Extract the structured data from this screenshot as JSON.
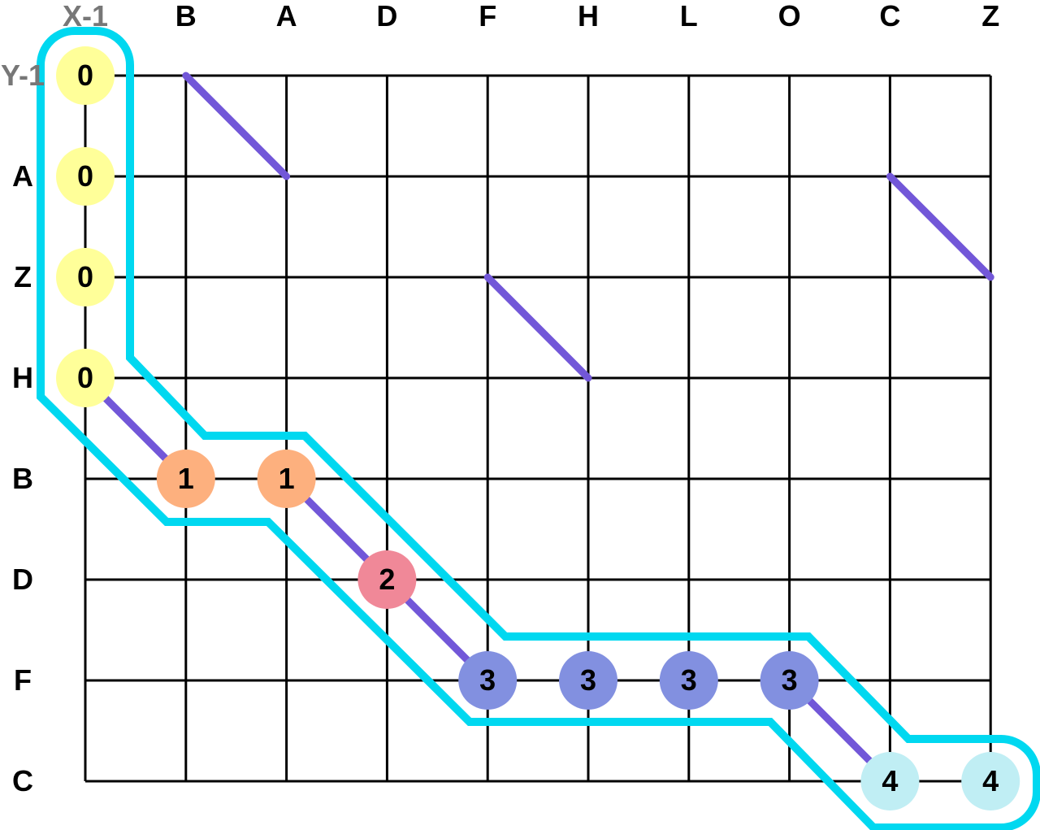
{
  "grid": {
    "column_headers": [
      "X-1",
      "B",
      "A",
      "D",
      "F",
      "H",
      "L",
      "O",
      "C",
      "Z"
    ],
    "row_headers": [
      "Y-1",
      "A",
      "Z",
      "H",
      "B",
      "D",
      "F",
      "C"
    ]
  },
  "diagonal_matches": [
    {
      "from": {
        "col": 1,
        "row": 0
      },
      "to": {
        "col": 2,
        "row": 1
      }
    },
    {
      "from": {
        "col": 8,
        "row": 1
      },
      "to": {
        "col": 9,
        "row": 2
      }
    },
    {
      "from": {
        "col": 4,
        "row": 2
      },
      "to": {
        "col": 5,
        "row": 3
      }
    },
    {
      "from": {
        "col": 0,
        "row": 3
      },
      "to": {
        "col": 1,
        "row": 4
      }
    },
    {
      "from": {
        "col": 2,
        "row": 4
      },
      "to": {
        "col": 3,
        "row": 5
      }
    },
    {
      "from": {
        "col": 3,
        "row": 5
      },
      "to": {
        "col": 4,
        "row": 6
      }
    },
    {
      "from": {
        "col": 7,
        "row": 6
      },
      "to": {
        "col": 8,
        "row": 7
      }
    }
  ],
  "nodes": [
    {
      "col": 0,
      "row": 0,
      "label": "0",
      "level": 0
    },
    {
      "col": 0,
      "row": 1,
      "label": "0",
      "level": 0
    },
    {
      "col": 0,
      "row": 2,
      "label": "0",
      "level": 0
    },
    {
      "col": 0,
      "row": 3,
      "label": "0",
      "level": 0
    },
    {
      "col": 1,
      "row": 4,
      "label": "1",
      "level": 1
    },
    {
      "col": 2,
      "row": 4,
      "label": "1",
      "level": 1
    },
    {
      "col": 3,
      "row": 5,
      "label": "2",
      "level": 2
    },
    {
      "col": 4,
      "row": 6,
      "label": "3",
      "level": 3
    },
    {
      "col": 5,
      "row": 6,
      "label": "3",
      "level": 3
    },
    {
      "col": 6,
      "row": 6,
      "label": "3",
      "level": 3
    },
    {
      "col": 7,
      "row": 6,
      "label": "3",
      "level": 3
    },
    {
      "col": 8,
      "row": 7,
      "label": "4",
      "level": 4
    },
    {
      "col": 9,
      "row": 7,
      "label": "4",
      "level": 4
    }
  ],
  "colors": {
    "grid_line": "#000000",
    "diagonal": "#7257d8",
    "outline": "#00d8f0",
    "header_text": "#000000",
    "virtual_header_text": "#777777",
    "node_text": "#000000",
    "level_fill": [
      "#ffff99",
      "#fdb07e",
      "#f08898",
      "#8290e0",
      "#c0eef4"
    ]
  }
}
